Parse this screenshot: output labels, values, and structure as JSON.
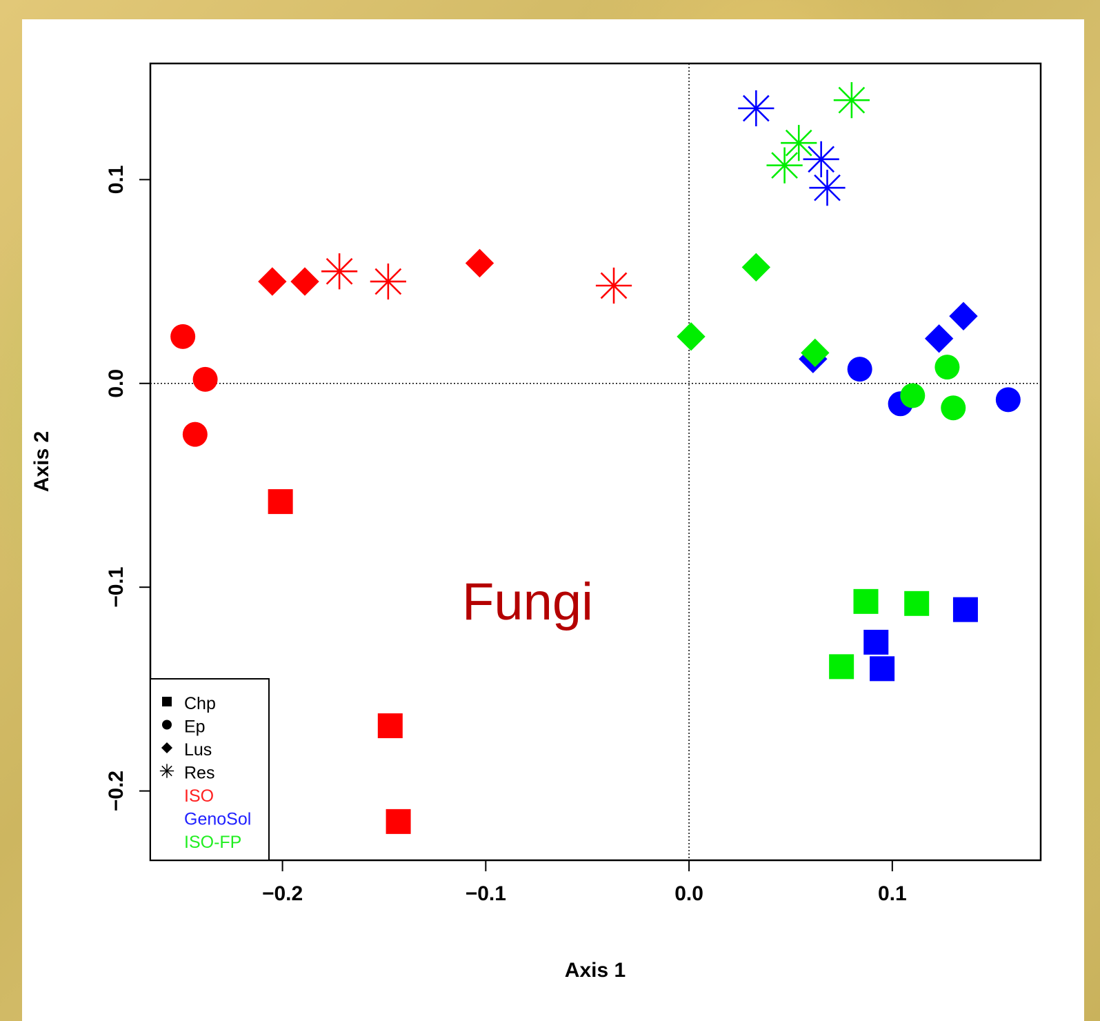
{
  "chart_data": {
    "type": "scatter",
    "title": "",
    "annotation": "Fungi",
    "xlabel": "Axis 1",
    "ylabel": "Axis 2",
    "xlim": [
      -0.265,
      0.173
    ],
    "ylim": [
      -0.234,
      0.157
    ],
    "xticks": [
      -0.2,
      -0.1,
      0.0,
      0.1
    ],
    "yticks": [
      -0.2,
      -0.1,
      0.0,
      0.1
    ],
    "xtick_labels": [
      "−0.2",
      "−0.1",
      "0.0",
      "0.1"
    ],
    "ytick_labels": [
      "−0.2",
      "−0.1",
      "0.0",
      "0.1"
    ],
    "reference_lines": {
      "x": 0.0,
      "y": 0.0,
      "style": "dotted"
    },
    "grid": false,
    "legend": {
      "position": "bottom-left",
      "shapes": [
        {
          "label": "Chp",
          "shape": "square"
        },
        {
          "label": "Ep",
          "shape": "circle"
        },
        {
          "label": "Lus",
          "shape": "diamond"
        },
        {
          "label": "Res",
          "shape": "asterisk"
        }
      ],
      "groups": [
        {
          "label": "ISO",
          "color": "#ff2020"
        },
        {
          "label": "GenoSol",
          "color": "#2020ff"
        },
        {
          "label": "ISO-FP",
          "color": "#20ee20"
        }
      ]
    },
    "series": [
      {
        "name": "ISO",
        "color": "#ff0000",
        "points": [
          {
            "shape": "circle",
            "x": -0.249,
            "y": 0.023
          },
          {
            "shape": "circle",
            "x": -0.238,
            "y": 0.002
          },
          {
            "shape": "circle",
            "x": -0.243,
            "y": -0.025
          },
          {
            "shape": "diamond",
            "x": -0.205,
            "y": 0.05
          },
          {
            "shape": "diamond",
            "x": -0.189,
            "y": 0.05
          },
          {
            "shape": "diamond",
            "x": -0.103,
            "y": 0.059
          },
          {
            "shape": "asterisk",
            "x": -0.172,
            "y": 0.055
          },
          {
            "shape": "asterisk",
            "x": -0.148,
            "y": 0.05
          },
          {
            "shape": "asterisk",
            "x": -0.037,
            "y": 0.048
          },
          {
            "shape": "square",
            "x": -0.201,
            "y": -0.058
          },
          {
            "shape": "square",
            "x": -0.147,
            "y": -0.168
          },
          {
            "shape": "square",
            "x": -0.143,
            "y": -0.215
          }
        ]
      },
      {
        "name": "GenoSol",
        "color": "#0000ff",
        "points": [
          {
            "shape": "asterisk",
            "x": 0.033,
            "y": 0.135
          },
          {
            "shape": "asterisk",
            "x": 0.065,
            "y": 0.11
          },
          {
            "shape": "asterisk",
            "x": 0.068,
            "y": 0.096
          },
          {
            "shape": "diamond",
            "x": 0.061,
            "y": 0.012
          },
          {
            "shape": "diamond",
            "x": 0.123,
            "y": 0.022
          },
          {
            "shape": "diamond",
            "x": 0.135,
            "y": 0.033
          },
          {
            "shape": "circle",
            "x": 0.084,
            "y": 0.007
          },
          {
            "shape": "circle",
            "x": 0.104,
            "y": -0.01
          },
          {
            "shape": "circle",
            "x": 0.157,
            "y": -0.008
          },
          {
            "shape": "square",
            "x": 0.092,
            "y": -0.127
          },
          {
            "shape": "square",
            "x": 0.095,
            "y": -0.14
          },
          {
            "shape": "square",
            "x": 0.136,
            "y": -0.111
          }
        ]
      },
      {
        "name": "ISO-FP",
        "color": "#00ee00",
        "points": [
          {
            "shape": "asterisk",
            "x": 0.08,
            "y": 0.139
          },
          {
            "shape": "asterisk",
            "x": 0.054,
            "y": 0.118
          },
          {
            "shape": "asterisk",
            "x": 0.047,
            "y": 0.107
          },
          {
            "shape": "diamond",
            "x": 0.033,
            "y": 0.057
          },
          {
            "shape": "diamond",
            "x": 0.001,
            "y": 0.023
          },
          {
            "shape": "diamond",
            "x": 0.062,
            "y": 0.015
          },
          {
            "shape": "circle",
            "x": 0.11,
            "y": -0.006
          },
          {
            "shape": "circle",
            "x": 0.127,
            "y": 0.008
          },
          {
            "shape": "circle",
            "x": 0.13,
            "y": -0.012
          },
          {
            "shape": "square",
            "x": 0.087,
            "y": -0.107
          },
          {
            "shape": "square",
            "x": 0.112,
            "y": -0.108
          },
          {
            "shape": "square",
            "x": 0.075,
            "y": -0.139
          }
        ]
      }
    ]
  }
}
